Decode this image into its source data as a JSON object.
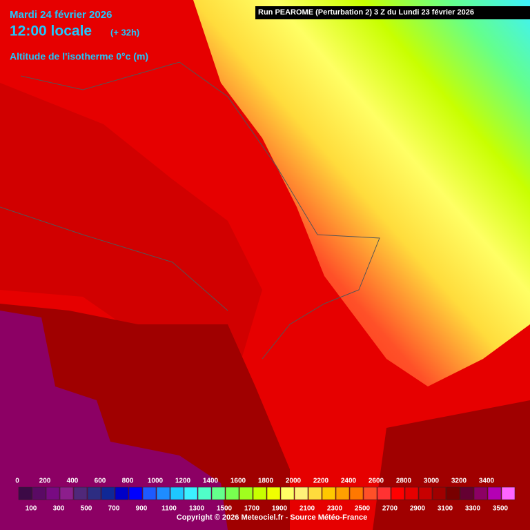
{
  "header": {
    "date": "Mardi 24 février 2026",
    "time": "12:00 locale",
    "lead": "(+ 32h)",
    "field": "Altitude de l'isotherme 0°c (m)"
  },
  "run": "Run PEAROME (Perturbation 2) 3 Z du Lundi 23 février 2026",
  "legend": {
    "levels": [
      0,
      100,
      200,
      300,
      400,
      500,
      600,
      700,
      800,
      900,
      1000,
      1100,
      1200,
      1300,
      1400,
      1500,
      1600,
      1700,
      1800,
      1900,
      2000,
      2100,
      2200,
      2300,
      2400,
      2500,
      2600,
      2700,
      2800,
      2900,
      3000,
      3100,
      3200,
      3300,
      3400,
      3500
    ],
    "colors": [
      "#3c0a46",
      "#5a0a64",
      "#780a82",
      "#8c1e8c",
      "#50287a",
      "#2d2d82",
      "#0f2896",
      "#0000c8",
      "#0000ff",
      "#1e5aff",
      "#1e8cff",
      "#1ec8ff",
      "#3cf0ff",
      "#50ffc8",
      "#64ff8c",
      "#78ff50",
      "#a0ff1e",
      "#c8ff00",
      "#f0ff00",
      "#ffff64",
      "#fff078",
      "#ffdc3c",
      "#ffc800",
      "#ffa000",
      "#ff7800",
      "#ff5028",
      "#ff3232",
      "#ff0000",
      "#e60000",
      "#c80000",
      "#a00000",
      "#780000",
      "#640032",
      "#8c0064",
      "#b400b4",
      "#ff64ff"
    ]
  },
  "copyright": "Copyright © 2026 Meteociel.fr - Source Météo-France"
}
